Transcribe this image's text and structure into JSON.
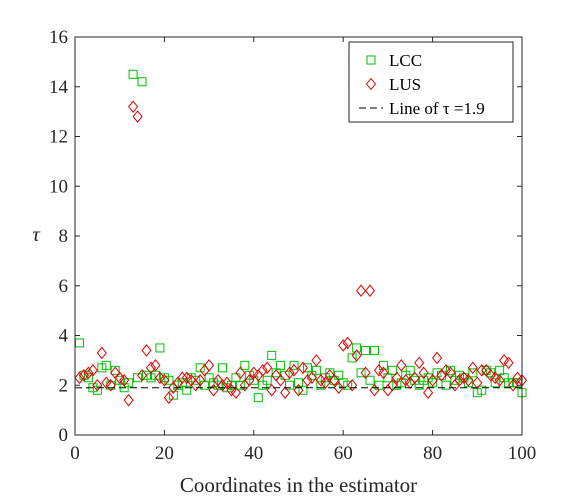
{
  "chart_data": {
    "type": "scatter",
    "xlabel": "Coordinates in the estimator",
    "ylabel": "τ",
    "xlim": [
      0,
      100
    ],
    "ylim": [
      0,
      16
    ],
    "xticks": [
      0,
      20,
      40,
      60,
      80,
      100
    ],
    "yticks": [
      0,
      2,
      4,
      6,
      8,
      10,
      12,
      14,
      16
    ],
    "grid": false,
    "legend_position": "top-right",
    "series": [
      {
        "name": "LCC",
        "marker": "square",
        "color": "#00c000",
        "x": [
          1,
          2,
          3,
          4,
          5,
          6,
          7,
          8,
          9,
          10,
          11,
          12,
          13,
          14,
          15,
          16,
          17,
          18,
          19,
          20,
          21,
          22,
          23,
          24,
          25,
          26,
          27,
          28,
          29,
          30,
          31,
          32,
          33,
          34,
          35,
          36,
          37,
          38,
          39,
          40,
          41,
          42,
          43,
          44,
          45,
          46,
          47,
          48,
          49,
          50,
          51,
          52,
          53,
          54,
          55,
          56,
          57,
          58,
          59,
          60,
          61,
          62,
          63,
          64,
          65,
          66,
          67,
          68,
          69,
          70,
          71,
          72,
          73,
          74,
          75,
          76,
          77,
          78,
          79,
          80,
          81,
          82,
          83,
          84,
          85,
          86,
          87,
          88,
          89,
          90,
          91,
          92,
          93,
          94,
          95,
          96,
          97,
          98,
          99,
          100
        ],
        "y": [
          3.7,
          2.4,
          2.3,
          1.9,
          1.8,
          2.7,
          2.8,
          2.0,
          2.6,
          2.2,
          1.9,
          2.1,
          14.5,
          2.3,
          14.2,
          2.4,
          2.3,
          2.4,
          3.5,
          2.3,
          2.2,
          1.6,
          2.0,
          2.1,
          1.8,
          2.3,
          2.2,
          2.7,
          2.0,
          2.3,
          2.1,
          2.0,
          2.7,
          1.9,
          2.0,
          2.3,
          2.0,
          2.8,
          2.4,
          2.2,
          1.5,
          2.0,
          2.2,
          3.2,
          2.5,
          2.8,
          2.4,
          2.0,
          2.8,
          2.1,
          1.8,
          2.7,
          2.4,
          2.6,
          2.0,
          2.3,
          2.5,
          2.2,
          2.4,
          2.1,
          2.0,
          3.1,
          3.5,
          2.5,
          3.4,
          2.2,
          3.4,
          2.0,
          2.8,
          2.3,
          2.6,
          2.0,
          2.1,
          2.4,
          2.6,
          2.2,
          2.0,
          2.2,
          2.3,
          2.1,
          2.5,
          2.4,
          2.0,
          2.6,
          2.2,
          2.4,
          2.3,
          2.1,
          2.5,
          1.7,
          1.8,
          2.6,
          2.5,
          2.1,
          2.6,
          2.3,
          2.1,
          2.1,
          2.1,
          1.7
        ]
      },
      {
        "name": "LUS",
        "marker": "diamond",
        "color": "#e00000",
        "x": [
          1,
          2,
          3,
          4,
          5,
          6,
          7,
          8,
          9,
          10,
          11,
          12,
          13,
          14,
          15,
          16,
          17,
          18,
          19,
          20,
          21,
          22,
          23,
          24,
          25,
          26,
          27,
          28,
          29,
          30,
          31,
          32,
          33,
          34,
          35,
          36,
          37,
          38,
          39,
          40,
          41,
          42,
          43,
          44,
          45,
          46,
          47,
          48,
          49,
          50,
          51,
          52,
          53,
          54,
          55,
          56,
          57,
          58,
          59,
          60,
          61,
          62,
          63,
          64,
          65,
          66,
          67,
          68,
          69,
          70,
          71,
          72,
          73,
          74,
          75,
          76,
          77,
          78,
          79,
          80,
          81,
          82,
          83,
          84,
          85,
          86,
          87,
          88,
          89,
          90,
          91,
          92,
          93,
          94,
          95,
          96,
          97,
          98,
          99,
          100
        ],
        "y": [
          2.3,
          2.4,
          2.5,
          2.6,
          2.0,
          3.3,
          2.1,
          2.0,
          2.5,
          2.3,
          2.2,
          1.4,
          13.2,
          12.8,
          2.4,
          3.4,
          2.7,
          2.8,
          2.3,
          2.2,
          1.5,
          1.9,
          2.1,
          2.3,
          2.3,
          2.2,
          2.0,
          2.2,
          2.6,
          2.8,
          1.8,
          2.2,
          2.0,
          2.1,
          1.8,
          1.7,
          2.5,
          2.0,
          2.2,
          2.5,
          2.4,
          2.6,
          2.7,
          1.8,
          2.4,
          2.2,
          1.7,
          2.5,
          2.6,
          1.8,
          2.7,
          2.2,
          2.3,
          3.0,
          2.2,
          2.1,
          2.4,
          2.2,
          1.9,
          3.6,
          3.7,
          2.0,
          3.2,
          5.8,
          2.5,
          5.8,
          1.8,
          2.6,
          2.5,
          1.8,
          2.0,
          2.3,
          2.8,
          2.2,
          2.1,
          2.3,
          2.9,
          2.5,
          1.7,
          2.2,
          3.1,
          2.4,
          2.6,
          2.5,
          2.0,
          2.2,
          2.3,
          2.2,
          2.7,
          2.1,
          2.6,
          2.6,
          2.4,
          2.3,
          2.2,
          3.0,
          2.9,
          2.0,
          2.3,
          2.2
        ]
      },
      {
        "name": "Line of τ =1.9",
        "type": "hline",
        "style": "dashed",
        "color": "#000000",
        "y": 1.9
      }
    ]
  }
}
